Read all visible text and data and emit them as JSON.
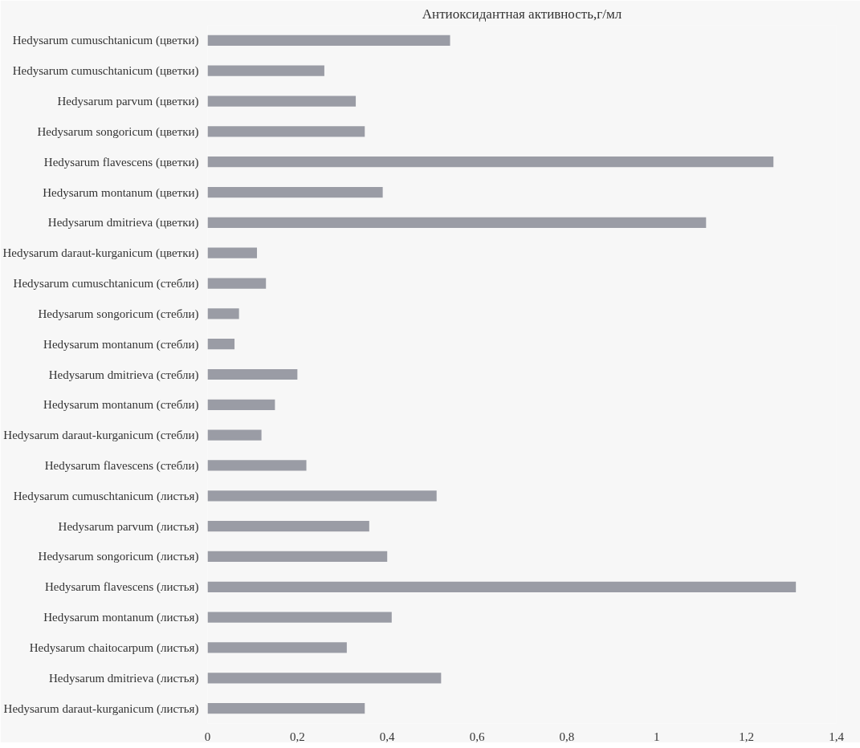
{
  "chart_data": {
    "type": "bar",
    "orientation": "horizontal",
    "title": "Антиоксидантная активность,г/мл",
    "categories": [
      "Hedysarum cumuschtanicum (цветки)",
      "Hedysarum cumuschtanicum (цветки)",
      "Hedysarum parvum (цветки)",
      "Hedysarum songoricum (цветки)",
      "Hedysarum flavescens (цветки)",
      "Hedysarum montanum (цветки)",
      "Hedysarum dmitrieva (цветки)",
      "Hedysarum daraut-kurganicum (цветки)",
      "Hedysarum cumuschtanicum (стебли)",
      "Hedysarum songoricum (стебли)",
      "Hedysarum montanum (стебли)",
      "Hedysarum dmitrieva (стебли)",
      "Hedysarum montanum (стебли)",
      "Hedysarum daraut-kurganicum (стебли)",
      "Hedysarum flavescens (стебли)",
      "Hedysarum cumuschtanicum (листья)",
      "Hedysarum parvum (листья)",
      "Hedysarum songoricum (листья)",
      "Hedysarum flavescens (листья)",
      "Hedysarum montanum (листья)",
      "Hedysarum chaitocarpum (листья)",
      "Hedysarum dmitrieva (листья)",
      "Hedysarum daraut-kurganicum (листья)"
    ],
    "values": [
      0.54,
      0.26,
      0.33,
      0.35,
      1.26,
      0.39,
      1.11,
      0.11,
      0.13,
      0.07,
      0.06,
      0.2,
      0.15,
      0.12,
      0.22,
      0.51,
      0.36,
      0.4,
      1.31,
      0.41,
      0.31,
      0.52,
      0.35
    ],
    "color": "#9a9ca5",
    "xlim": [
      0,
      1.4
    ],
    "xticks": [
      {
        "value": 0,
        "label": "0"
      },
      {
        "value": 0.2,
        "label": "0,2"
      },
      {
        "value": 0.4,
        "label": "0,4"
      },
      {
        "value": 0.6,
        "label": "0,6"
      },
      {
        "value": 0.8,
        "label": "0,8"
      },
      {
        "value": 1,
        "label": "1"
      },
      {
        "value": 1.2,
        "label": "1,2"
      },
      {
        "value": 1.4,
        "label": "1,4"
      }
    ],
    "grid": false
  }
}
